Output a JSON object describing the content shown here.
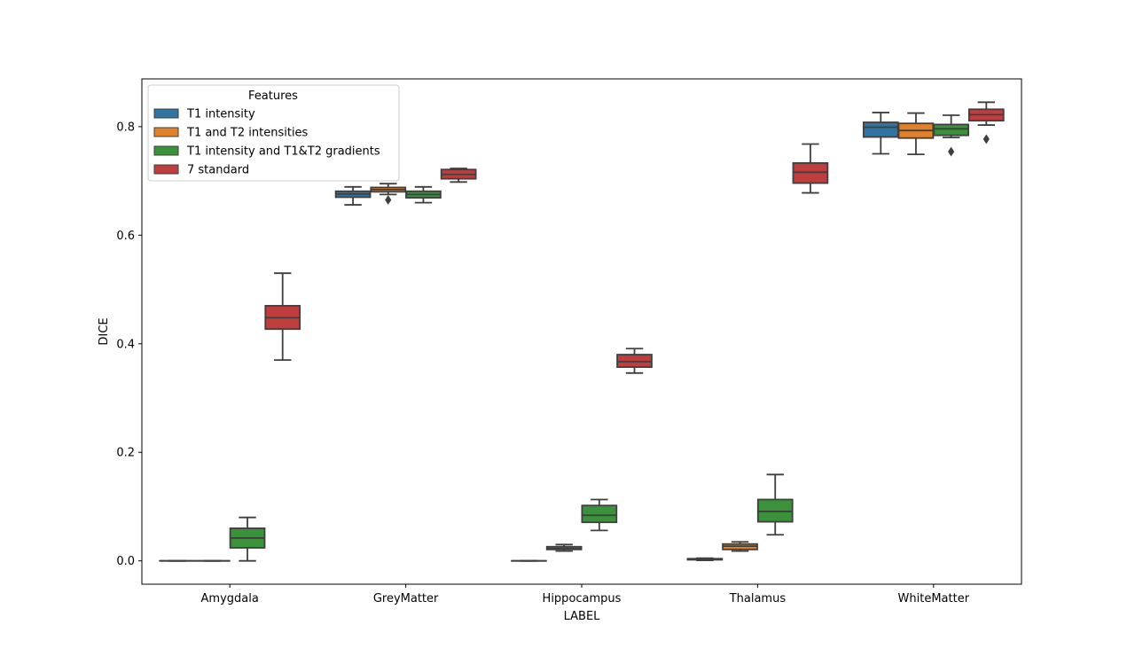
{
  "chart_data": {
    "type": "box",
    "title": "",
    "xlabel": "LABEL",
    "ylabel": "DICE",
    "ylim": [
      -0.043,
      0.888
    ],
    "yticks": [
      0.0,
      0.2,
      0.4,
      0.6,
      0.8
    ],
    "ytick_labels": [
      "0.0",
      "0.2",
      "0.4",
      "0.6",
      "0.8"
    ],
    "grid": false,
    "categories": [
      "Amygdala",
      "GreyMatter",
      "Hippocampus",
      "Thalamus",
      "WhiteMatter"
    ],
    "legend": {
      "title": "Features",
      "placement": "upper-left"
    },
    "series": [
      {
        "name": "T1 intensity",
        "color": "#3274a1",
        "boxes": [
          {
            "whislo": 0.0,
            "q1": 0.0,
            "med": 0.0,
            "q3": 0.0,
            "whishi": 0.0,
            "fliers": []
          },
          {
            "whislo": 0.656,
            "q1": 0.67,
            "med": 0.676,
            "q3": 0.681,
            "whishi": 0.689,
            "fliers": []
          },
          {
            "whislo": 0.0,
            "q1": 0.0,
            "med": 0.0,
            "q3": 0.0,
            "whishi": 0.0,
            "fliers": []
          },
          {
            "whislo": 0.001,
            "q1": 0.002,
            "med": 0.003,
            "q3": 0.004,
            "whishi": 0.005,
            "fliers": []
          },
          {
            "whislo": 0.75,
            "q1": 0.781,
            "med": 0.799,
            "q3": 0.808,
            "whishi": 0.826,
            "fliers": []
          }
        ]
      },
      {
        "name": "T1 and T2 intensities",
        "color": "#e1812c",
        "boxes": [
          {
            "whislo": 0.0,
            "q1": 0.0,
            "med": 0.0,
            "q3": 0.0,
            "whishi": 0.0,
            "fliers": []
          },
          {
            "whislo": 0.675,
            "q1": 0.68,
            "med": 0.684,
            "q3": 0.688,
            "whishi": 0.695,
            "fliers": [
              0.665
            ]
          },
          {
            "whislo": 0.018,
            "q1": 0.021,
            "med": 0.023,
            "q3": 0.026,
            "whishi": 0.03,
            "fliers": []
          },
          {
            "whislo": 0.018,
            "q1": 0.021,
            "med": 0.027,
            "q3": 0.031,
            "whishi": 0.035,
            "fliers": []
          },
          {
            "whislo": 0.749,
            "q1": 0.779,
            "med": 0.793,
            "q3": 0.806,
            "whishi": 0.825,
            "fliers": []
          }
        ]
      },
      {
        "name": "T1 intensity and T1&T2 gradients",
        "color": "#3a923a",
        "boxes": [
          {
            "whislo": 0.0,
            "q1": 0.024,
            "med": 0.042,
            "q3": 0.06,
            "whishi": 0.08,
            "fliers": []
          },
          {
            "whislo": 0.66,
            "q1": 0.669,
            "med": 0.675,
            "q3": 0.681,
            "whishi": 0.689,
            "fliers": []
          },
          {
            "whislo": 0.056,
            "q1": 0.071,
            "med": 0.084,
            "q3": 0.102,
            "whishi": 0.113,
            "fliers": []
          },
          {
            "whislo": 0.048,
            "q1": 0.072,
            "med": 0.091,
            "q3": 0.113,
            "whishi": 0.159,
            "fliers": []
          },
          {
            "whislo": 0.78,
            "q1": 0.784,
            "med": 0.796,
            "q3": 0.804,
            "whishi": 0.821,
            "fliers": [
              0.754
            ]
          }
        ]
      },
      {
        "name": "7 standard",
        "color": "#c03d3e",
        "boxes": [
          {
            "whislo": 0.37,
            "q1": 0.427,
            "med": 0.448,
            "q3": 0.47,
            "whishi": 0.53,
            "fliers": []
          },
          {
            "whislo": 0.698,
            "q1": 0.704,
            "med": 0.712,
            "q3": 0.721,
            "whishi": 0.723,
            "fliers": []
          },
          {
            "whislo": 0.346,
            "q1": 0.357,
            "med": 0.367,
            "q3": 0.38,
            "whishi": 0.391,
            "fliers": []
          },
          {
            "whislo": 0.678,
            "q1": 0.696,
            "med": 0.716,
            "q3": 0.733,
            "whishi": 0.768,
            "fliers": []
          },
          {
            "whislo": 0.803,
            "q1": 0.811,
            "med": 0.822,
            "q3": 0.832,
            "whishi": 0.845,
            "fliers": [
              0.777
            ]
          }
        ]
      }
    ]
  }
}
